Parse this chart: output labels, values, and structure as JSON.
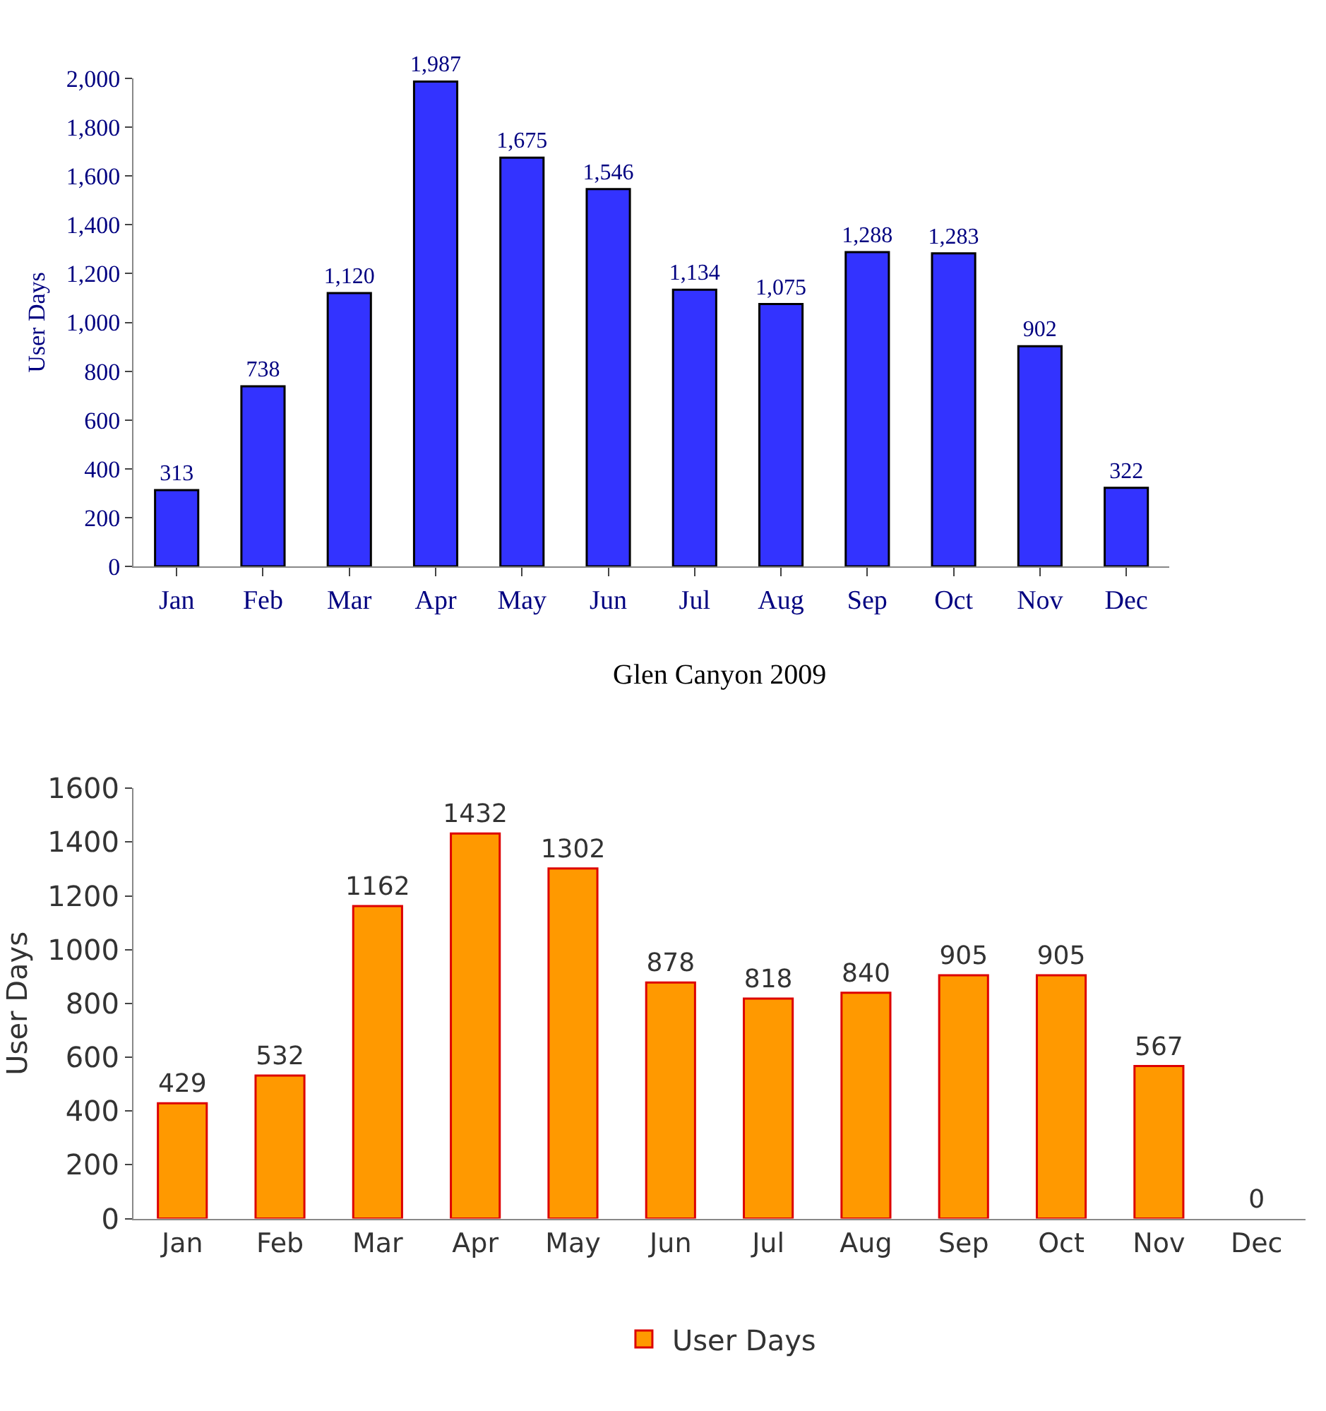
{
  "chart_data": [
    {
      "type": "bar",
      "ylabel": "User Days",
      "categories": [
        "Jan",
        "Feb",
        "Mar",
        "Apr",
        "May",
        "Jun",
        "Jul",
        "Aug",
        "Sep",
        "Oct",
        "Nov",
        "Dec"
      ],
      "values": [
        313,
        738,
        1120,
        1987,
        1675,
        1546,
        1134,
        1075,
        1288,
        1283,
        902,
        322
      ],
      "value_labels": [
        "313",
        "738",
        "1,120",
        "1,987",
        "1,675",
        "1,546",
        "1,134",
        "1,075",
        "1,288",
        "1,283",
        "902",
        "322"
      ],
      "color": "#3333ff",
      "ylim": [
        0,
        2000
      ],
      "yticks": [
        0,
        200,
        400,
        600,
        800,
        {
          "value": 1000,
          "label": "1,000"
        },
        {
          "value": 1200,
          "label": "1,200"
        },
        {
          "value": 1400,
          "label": "1,400"
        },
        {
          "value": 1600,
          "label": "1,600"
        },
        {
          "value": 1800,
          "label": "1,800"
        },
        {
          "value": 2000,
          "label": "2,000"
        }
      ]
    },
    {
      "type": "bar",
      "title": "Glen Canyon 2009",
      "ylabel": "User Days",
      "categories": [
        "Jan",
        "Feb",
        "Mar",
        "Apr",
        "May",
        "Jun",
        "Jul",
        "Aug",
        "Sep",
        "Oct",
        "Nov",
        "Dec"
      ],
      "series": [
        {
          "name": "User Days",
          "color": "#ff9900",
          "values": [
            429,
            532,
            1162,
            1432,
            1302,
            878,
            818,
            840,
            905,
            905,
            567,
            0
          ]
        }
      ],
      "ylim": [
        0,
        1600
      ],
      "yticks": [
        0,
        200,
        400,
        600,
        800,
        1000,
        1200,
        1400,
        1600
      ],
      "data_labels": true,
      "legend": "bottom"
    }
  ]
}
